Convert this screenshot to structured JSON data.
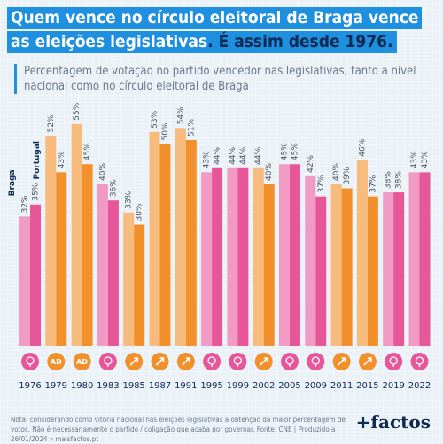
{
  "header": {
    "title_line1": "Quem vence no círculo eleitoral de Braga vence",
    "title_line2a": "as eleições legislativas",
    "title_line2b": ". É assim desde 1976.",
    "subtitle": "Percentagem de votação no partido vencedor nas legislativas, tanto a nível nacional como no círculo eleitoral de Braga"
  },
  "footer": {
    "note": "Nota: considerando como vitória nacional nas eleições legislativas a obtenção da maior percentagem de votos. Não é necessariamente o partido / coligação que acaba por governar. Fonte: CNE | Produzido a 26/01/2024 » maisfactos.pt",
    "brand": "+factos"
  },
  "chart_data": {
    "type": "bar",
    "categories": [
      "1976",
      "1979",
      "1980",
      "1983",
      "1985",
      "1987",
      "1991",
      "1995",
      "1999",
      "2002",
      "2005",
      "2009",
      "2011",
      "2015",
      "2019",
      "2022"
    ],
    "series": [
      {
        "name": "Braga",
        "values": [
          32,
          52,
          55,
          40,
          33,
          53,
          54,
          43,
          44,
          44,
          45,
          42,
          40,
          46,
          38,
          43
        ]
      },
      {
        "name": "Portugal",
        "values": [
          35,
          43,
          45,
          36,
          30,
          50,
          51,
          44,
          44,
          40,
          45,
          37,
          39,
          37,
          38,
          43
        ]
      }
    ],
    "value_labels": [
      [
        "32%",
        "35%"
      ],
      [
        "52%",
        "43%"
      ],
      [
        "55%",
        "45%"
      ],
      [
        "40%",
        "36%"
      ],
      [
        "33%",
        "30%"
      ],
      [
        "53%",
        "50%"
      ],
      [
        "54%",
        "51%"
      ],
      [
        "43%",
        "44%"
      ],
      [
        "44%",
        "44%"
      ],
      [
        "44%",
        "40%"
      ],
      [
        "45%",
        "45%"
      ],
      [
        "42%",
        "37%"
      ],
      [
        "40%",
        "39%"
      ],
      [
        "46%",
        "37%"
      ],
      [
        "38%",
        "38%"
      ],
      [
        "43%",
        "43%"
      ]
    ],
    "winner": [
      "PS",
      "AD",
      "AD",
      "PS",
      "PSD",
      "PSD",
      "PSD",
      "PS",
      "PS",
      "PSD",
      "PS",
      "PS",
      "PSD",
      "PAF",
      "PS",
      "PS"
    ],
    "party_icon": {
      "PS": "fist-rose-icon",
      "AD": "ad-icon",
      "PSD": "arrow-icon",
      "PAF": "paf-icon"
    },
    "icon_text": {
      "AD": "AD"
    },
    "colors": {
      "PS": "#e8569a",
      "PSD": "#f2902c",
      "AD": "#f2902c",
      "PAF": "#f2902c",
      "PS_light": "#f19ac3",
      "PSD_light": "#f7bb7e"
    },
    "ylim": [
      0,
      60
    ]
  }
}
